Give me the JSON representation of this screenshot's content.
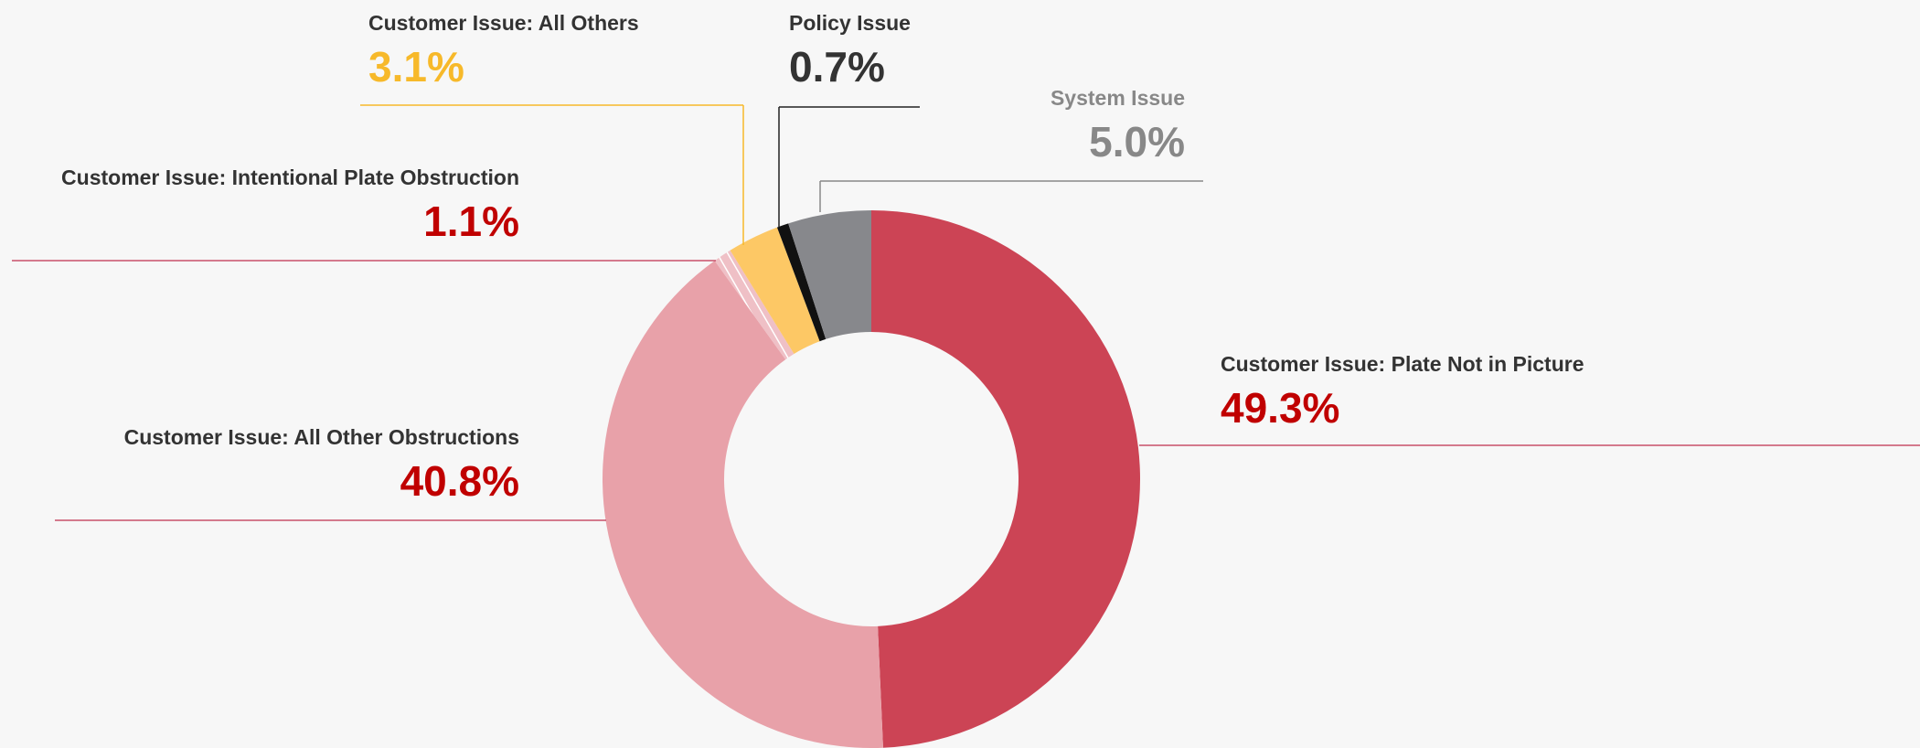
{
  "chart_data": {
    "type": "donut",
    "categories": [
      "Customer Issue: Plate Not in Picture",
      "Customer Issue: All Other Obstructions",
      "Customer Issue: Intentional Plate Obstruction",
      "Customer Issue: All Others",
      "Policy Issue",
      "System Issue"
    ],
    "values": [
      49.3,
      40.8,
      1.1,
      3.1,
      0.7,
      5.0
    ],
    "value_labels": [
      "49.3%",
      "40.8%",
      "1.1%",
      "3.1%",
      "0.7%",
      "5.0%"
    ],
    "colors": [
      "#cc4455",
      "#e8a1a9",
      "#efc0c6",
      "#fdc865",
      "#111111",
      "#87888c"
    ],
    "hatched": [
      false,
      false,
      true,
      false,
      false,
      false
    ],
    "label_colors": [
      "#333333",
      "#333333",
      "#333333",
      "#333333",
      "#333333",
      "#888888"
    ],
    "value_colors": [
      "#c00000",
      "#c00000",
      "#c00000",
      "#f7b92a",
      "#333333",
      "#888888"
    ],
    "line_colors": [
      "#c8506a",
      "#c8506a",
      "#c8506a",
      "#f7b92a",
      "#222222",
      "#888888"
    ]
  }
}
